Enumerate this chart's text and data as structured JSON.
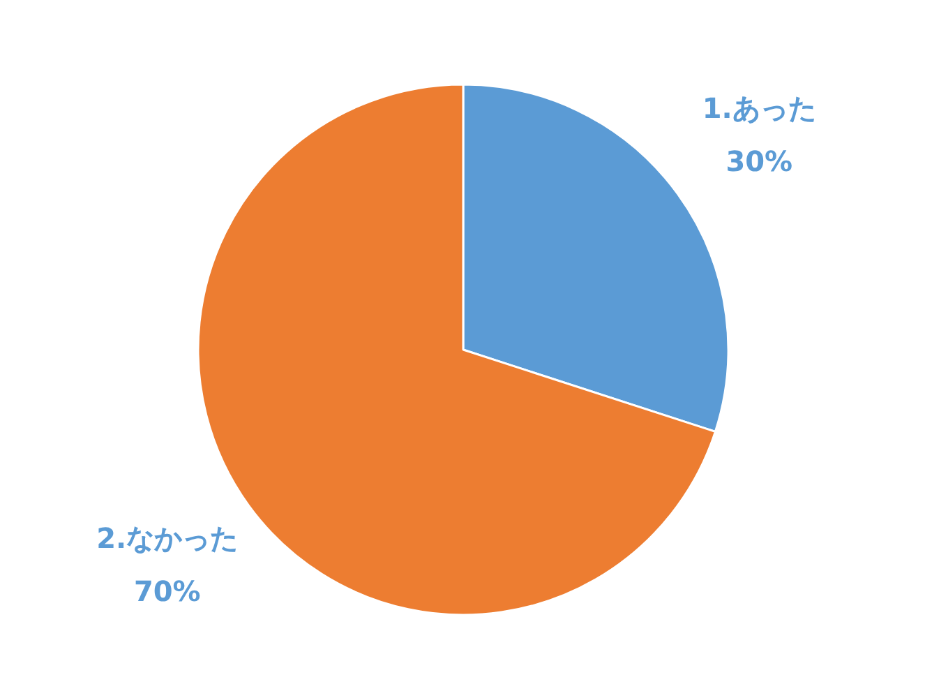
{
  "chart_data": {
    "type": "pie",
    "categories": [
      "1.あった",
      "2.なかった"
    ],
    "values": [
      30,
      70
    ],
    "colors": [
      "#5b9bd5",
      "#ed7d31"
    ],
    "value_labels": [
      "30%",
      "70%"
    ],
    "legend": false
  }
}
